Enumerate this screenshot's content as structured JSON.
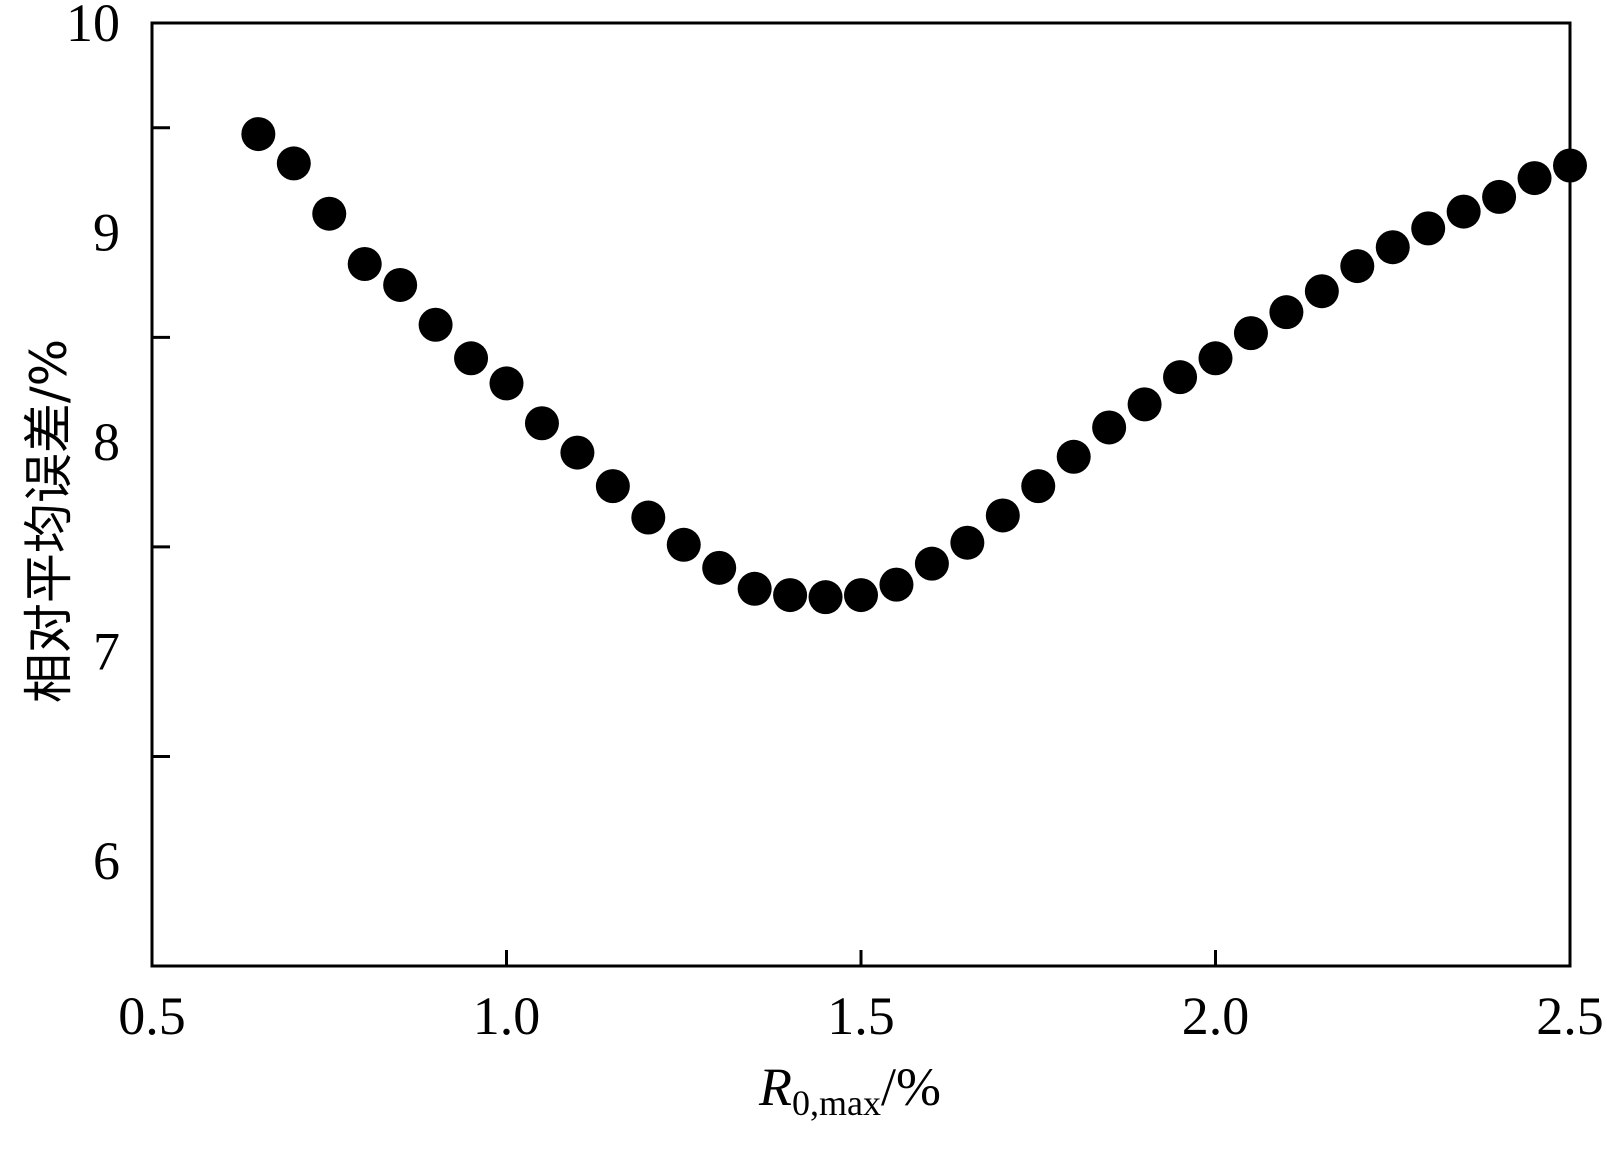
{
  "chart_data": {
    "type": "scatter",
    "title": "",
    "ylabel": "相对平均误差/%",
    "xlabel": {
      "symbol": "R",
      "subscript": "0,max",
      "unit": "/%"
    },
    "xlim": [
      0.5,
      2.5
    ],
    "ylim": [
      5.5,
      10
    ],
    "xticks": [
      0.5,
      1.0,
      1.5,
      2.0,
      2.5
    ],
    "xtick_labels": [
      "0.5",
      "1.0",
      "1.5",
      "2.0",
      "2.5"
    ],
    "yticks_major": [
      6,
      7,
      8,
      9,
      10
    ],
    "ytick_labels": [
      "6",
      "7",
      "8",
      "9",
      "10"
    ],
    "yticks_minor": [
      6.5,
      7.5,
      8.5,
      9.5
    ],
    "grid": false,
    "legend": "none",
    "marker_color": "#000000",
    "series": [
      {
        "x": [
          0.65,
          0.7,
          0.75,
          0.8,
          0.85,
          0.9,
          0.95,
          1.0,
          1.05,
          1.1,
          1.15,
          1.2,
          1.25,
          1.3,
          1.35,
          1.4,
          1.45,
          1.5,
          1.55,
          1.6,
          1.65,
          1.7,
          1.75,
          1.8,
          1.85,
          1.9,
          1.95,
          2.0,
          2.05,
          2.1,
          2.15,
          2.2,
          2.25,
          2.3,
          2.35,
          2.4,
          2.45,
          2.5
        ],
        "y": [
          9.47,
          9.33,
          9.09,
          8.85,
          8.75,
          8.56,
          8.4,
          8.28,
          8.09,
          7.95,
          7.79,
          7.64,
          7.51,
          7.4,
          7.3,
          7.27,
          7.26,
          7.27,
          7.32,
          7.42,
          7.52,
          7.65,
          7.79,
          7.93,
          8.07,
          8.18,
          8.31,
          8.4,
          8.52,
          8.62,
          8.72,
          8.84,
          8.93,
          9.02,
          9.1,
          9.17,
          9.26,
          9.32
        ]
      }
    ]
  }
}
